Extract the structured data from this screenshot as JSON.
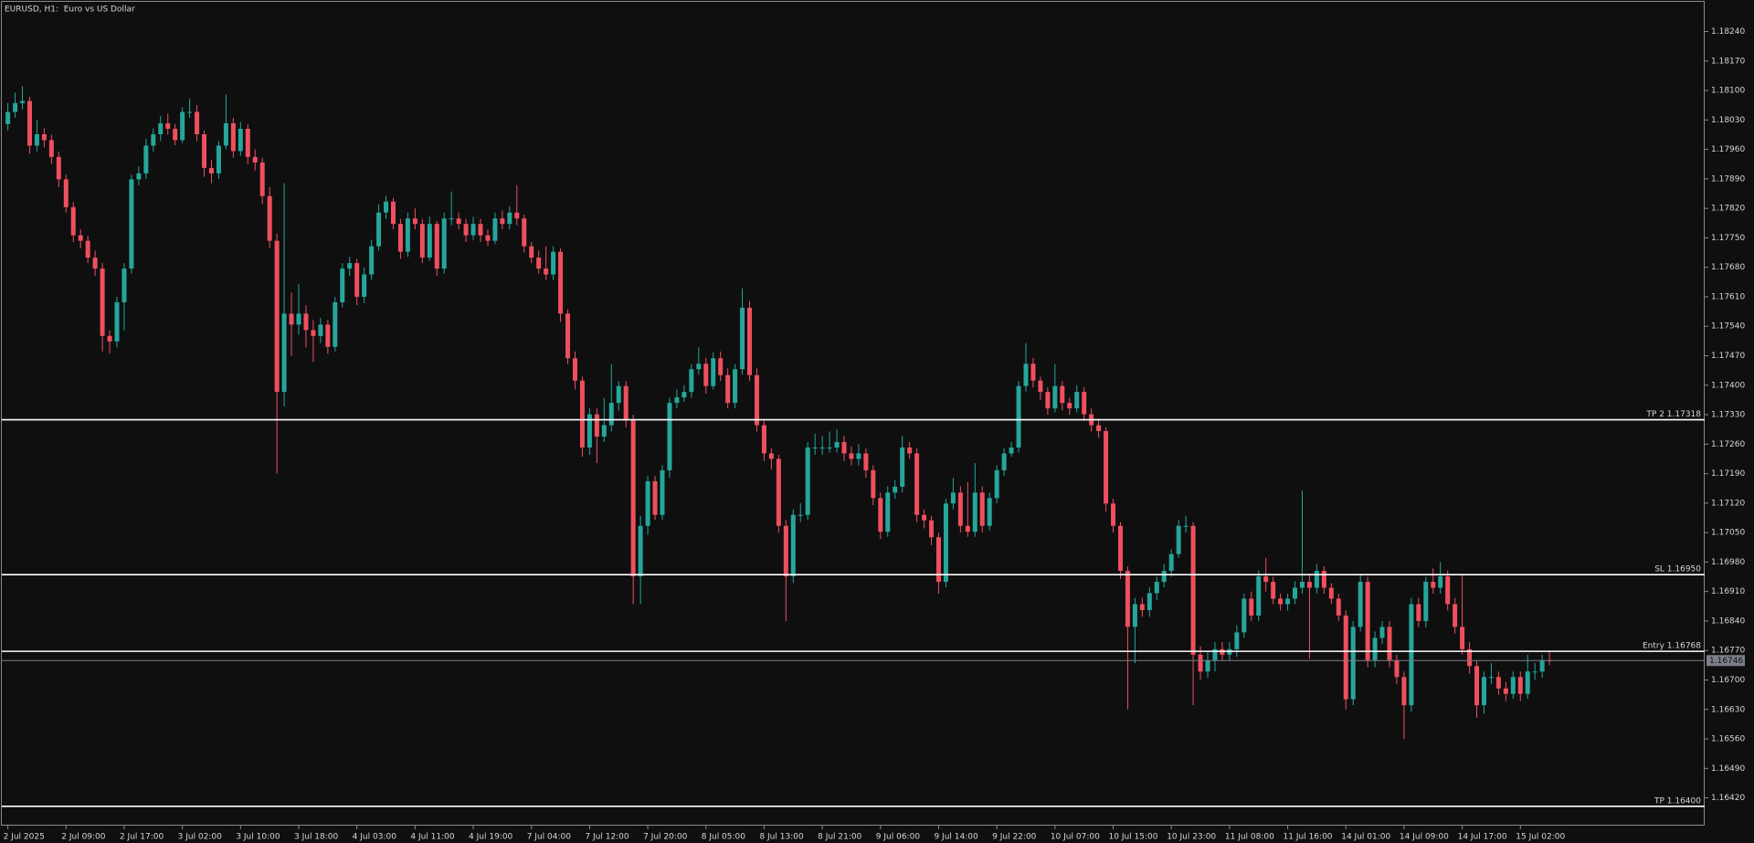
{
  "chart_data": {
    "type": "candlestick",
    "title": "EURUSD, H1:  Euro vs US Dollar",
    "up_color": "#26a69a",
    "down_color": "#ef4f5e",
    "level_color": "#ffffff",
    "last_price_color": "#7a7f88",
    "categories": [
      "2 Jul 2025",
      null,
      null,
      null,
      null,
      null,
      null,
      null,
      "2 Jul 09:00",
      null,
      null,
      null,
      null,
      null,
      null,
      null,
      "2 Jul 17:00",
      null,
      null,
      null,
      null,
      null,
      null,
      null,
      "3 Jul 02:00",
      null,
      null,
      null,
      null,
      null,
      null,
      null,
      "3 Jul 10:00",
      null,
      null,
      null,
      null,
      null,
      null,
      null,
      "3 Jul 18:00",
      null,
      null,
      null,
      null,
      null,
      null,
      null,
      "4 Jul 03:00",
      null,
      null,
      null,
      null,
      null,
      null,
      null,
      "4 Jul 11:00",
      null,
      null,
      null,
      null,
      null,
      null,
      null,
      "4 Jul 19:00",
      null,
      null,
      null,
      null,
      null,
      null,
      null,
      "7 Jul 04:00",
      null,
      null,
      null,
      null,
      null,
      null,
      null,
      "7 Jul 12:00",
      null,
      null,
      null,
      null,
      null,
      null,
      null,
      "7 Jul 20:00",
      null,
      null,
      null,
      null,
      null,
      null,
      null,
      "8 Jul 05:00",
      null,
      null,
      null,
      null,
      null,
      null,
      null,
      "8 Jul 13:00",
      null,
      null,
      null,
      null,
      null,
      null,
      null,
      "8 Jul 21:00",
      null,
      null,
      null,
      null,
      null,
      null,
      null,
      "9 Jul 06:00",
      null,
      null,
      null,
      null,
      null,
      null,
      null,
      "9 Jul 14:00",
      null,
      null,
      null,
      null,
      null,
      null,
      null,
      "9 Jul 22:00",
      null,
      null,
      null,
      null,
      null,
      null,
      null,
      "10 Jul 07:00",
      null,
      null,
      null,
      null,
      null,
      null,
      null,
      "10 Jul 15:00",
      null,
      null,
      null,
      null,
      null,
      null,
      null,
      "10 Jul 23:00",
      null,
      null,
      null,
      null,
      null,
      null,
      null,
      "11 Jul 08:00",
      null,
      null,
      null,
      null,
      null,
      null,
      null,
      "11 Jul 16:00",
      null,
      null,
      null,
      null,
      null,
      null,
      null,
      "14 Jul 01:00",
      null,
      null,
      null,
      null,
      null,
      null,
      null,
      "14 Jul 09:00",
      null,
      null,
      null,
      null,
      null,
      null,
      null,
      "14 Jul 17:00",
      null,
      null,
      null,
      null,
      null,
      null,
      null,
      "15 Jul 02:00",
      null,
      null,
      null,
      null
    ],
    "open": [
      1.1802,
      1.18049,
      1.1807,
      1.18075,
      1.17969,
      1.17996,
      1.17982,
      1.17942,
      1.17889,
      1.17823,
      1.17756,
      1.17743,
      1.17703,
      1.17677,
      1.17517,
      1.17504,
      1.17597,
      1.17677,
      1.17889,
      1.17903,
      1.17969,
      1.17996,
      1.18022,
      1.18009,
      1.17982,
      1.18049,
      1.18049,
      1.17996,
      1.17916,
      1.17903,
      1.17969,
      1.18022,
      1.17956,
      1.18009,
      1.17942,
      1.17929,
      1.17849,
      1.17743,
      1.17384,
      1.1757,
      1.17544,
      1.1757,
      1.17531,
      1.17517,
      1.17544,
      1.17491,
      1.17597,
      1.17677,
      1.1769,
      1.1761,
      1.17663,
      1.1773,
      1.1781,
      1.17836,
      1.17783,
      1.17717,
      1.17796,
      1.17783,
      1.17703,
      1.17783,
      1.17677,
      1.17796,
      1.17796,
      1.17783,
      1.17756,
      1.17783,
      1.17756,
      1.17743,
      1.17796,
      1.17783,
      1.1781,
      1.17796,
      1.1773,
      1.17703,
      1.17677,
      1.17663,
      1.17717,
      1.1757,
      1.17464,
      1.17411,
      1.17252,
      1.17331,
      1.17278,
      1.17305,
      1.17358,
      1.17398,
      1.17318,
      1.16946,
      1.17066,
      1.17172,
      1.17092,
      1.17198,
      1.17358,
      1.17371,
      1.17384,
      1.17438,
      1.17451,
      1.17398,
      1.17464,
      1.17424,
      1.17358,
      1.17438,
      1.17584,
      1.17424,
      1.17305,
      1.17238,
      1.17225,
      1.17066,
      1.16946,
      1.17092,
      1.17092,
      1.17252,
      1.17252,
      1.17252,
      1.17252,
      1.17265,
      1.17238,
      1.17225,
      1.17238,
      1.17198,
      1.17132,
      1.17052,
      1.17145,
      1.17159,
      1.17252,
      1.17238,
      1.17092,
      1.17079,
      1.17039,
      1.16933,
      1.17119,
      1.17145,
      1.17066,
      1.17052,
      1.17145,
      1.17066,
      1.17132,
      1.17198,
      1.17238,
      1.17252,
      1.17398,
      1.17451,
      1.17411,
      1.17384,
      1.17345,
      1.17398,
      1.17358,
      1.17345,
      1.17384,
      1.17331,
      1.17305,
      1.17291,
      1.17119,
      1.17066,
      1.16959,
      1.16826,
      1.1688,
      1.16866,
      1.16906,
      1.16933,
      1.16959,
      1.16999,
      1.17066,
      1.17066,
      1.1676,
      1.1672,
      1.16747,
      1.16773,
      1.1676,
      1.16773,
      1.16813,
      1.16893,
      1.16853,
      1.16946,
      1.16933,
      1.16893,
      1.1688,
      1.16893,
      1.16919,
      1.16933,
      1.16919,
      1.16959,
      1.16919,
      1.16893,
      1.16853,
      1.16654,
      1.16826,
      1.16933,
      1.16747,
      1.168,
      1.16826,
      1.16747,
      1.16707,
      1.1664,
      1.1688,
      1.1684,
      1.16933,
      1.16919,
      1.16946,
      1.1688,
      1.16826,
      1.16773,
      1.16733,
      1.1664,
      1.16707,
      1.16707,
      1.1668,
      1.16667,
      1.16707,
      1.16667,
      1.1672,
      1.1672,
      1.16747
    ],
    "high": [
      1.1807,
      1.18095,
      1.1811,
      1.18085,
      1.1803,
      1.1801,
      1.17995,
      1.17955,
      1.179,
      1.17835,
      1.1777,
      1.17755,
      1.1772,
      1.1769,
      1.1753,
      1.1761,
      1.1769,
      1.179,
      1.1792,
      1.17985,
      1.1801,
      1.1804,
      1.18045,
      1.1802,
      1.1806,
      1.1808,
      1.18065,
      1.18005,
      1.17935,
      1.1798,
      1.1809,
      1.18035,
      1.18025,
      1.1802,
      1.1796,
      1.1794,
      1.1787,
      1.1776,
      1.1788,
      1.1762,
      1.1764,
      1.1759,
      1.17555,
      1.1756,
      1.17555,
      1.1761,
      1.1769,
      1.17705,
      1.177,
      1.1768,
      1.17745,
      1.1783,
      1.1785,
      1.17845,
      1.17795,
      1.1781,
      1.1782,
      1.17795,
      1.178,
      1.1779,
      1.1781,
      1.1786,
      1.1781,
      1.17795,
      1.178,
      1.17795,
      1.1777,
      1.1781,
      1.17815,
      1.17825,
      1.17875,
      1.17805,
      1.1774,
      1.1772,
      1.1773,
      1.1773,
      1.17725,
      1.1758,
      1.1748,
      1.1742,
      1.17345,
      1.17345,
      1.1737,
      1.1745,
      1.1741,
      1.1741,
      1.1733,
      1.1709,
      1.17185,
      1.17185,
      1.1721,
      1.1737,
      1.1739,
      1.174,
      1.1745,
      1.1749,
      1.17465,
      1.17478,
      1.1748,
      1.1744,
      1.1745,
      1.1763,
      1.176,
      1.1744,
      1.17315,
      1.1725,
      1.17235,
      1.1708,
      1.17105,
      1.1712,
      1.17265,
      1.17285,
      1.1728,
      1.1729,
      1.17295,
      1.1728,
      1.17255,
      1.1726,
      1.1725,
      1.1721,
      1.17145,
      1.1716,
      1.17175,
      1.1728,
      1.17265,
      1.1725,
      1.17105,
      1.1709,
      1.1705,
      1.1713,
      1.1718,
      1.1716,
      1.1717,
      1.17215,
      1.1716,
      1.17145,
      1.1721,
      1.1725,
      1.17265,
      1.1741,
      1.175,
      1.17465,
      1.1742,
      1.17395,
      1.1745,
      1.1741,
      1.1737,
      1.174,
      1.17395,
      1.17345,
      1.1732,
      1.173,
      1.1713,
      1.17075,
      1.1697,
      1.16895,
      1.16895,
      1.1692,
      1.16945,
      1.16975,
      1.1701,
      1.1708,
      1.1709,
      1.17075,
      1.1678,
      1.1677,
      1.1679,
      1.1679,
      1.1679,
      1.1683,
      1.16905,
      1.1691,
      1.1696,
      1.1699,
      1.16945,
      1.16905,
      1.16905,
      1.16935,
      1.1715,
      1.1695,
      1.16975,
      1.1697,
      1.1693,
      1.16905,
      1.16865,
      1.1684,
      1.1695,
      1.16945,
      1.16815,
      1.1684,
      1.1684,
      1.1676,
      1.1672,
      1.16895,
      1.16895,
      1.16945,
      1.16965,
      1.1698,
      1.1696,
      1.16895,
      1.1695,
      1.1679,
      1.16745,
      1.1672,
      1.1674,
      1.1672,
      1.16695,
      1.1672,
      1.1672,
      1.1676,
      1.1674,
      1.1676,
      1.1677
    ],
    "low": [
      1.18005,
      1.18035,
      1.18055,
      1.1795,
      1.17955,
      1.17965,
      1.17925,
      1.1787,
      1.1781,
      1.1774,
      1.17725,
      1.1769,
      1.1766,
      1.1748,
      1.17475,
      1.1749,
      1.1753,
      1.17665,
      1.17875,
      1.1789,
      1.17955,
      1.1798,
      1.17995,
      1.1797,
      1.17975,
      1.18035,
      1.1798,
      1.17895,
      1.1788,
      1.1789,
      1.1796,
      1.1794,
      1.17945,
      1.17925,
      1.1791,
      1.1783,
      1.17725,
      1.1719,
      1.1735,
      1.1747,
      1.1752,
      1.1749,
      1.17455,
      1.175,
      1.17475,
      1.1748,
      1.17585,
      1.1766,
      1.1759,
      1.17595,
      1.1765,
      1.1772,
      1.17795,
      1.1777,
      1.177,
      1.17705,
      1.1777,
      1.1769,
      1.17695,
      1.1766,
      1.17665,
      1.1778,
      1.1777,
      1.1774,
      1.17745,
      1.1774,
      1.1773,
      1.17735,
      1.1777,
      1.1777,
      1.1778,
      1.17715,
      1.1769,
      1.17665,
      1.1765,
      1.1765,
      1.1755,
      1.1745,
      1.1739,
      1.1723,
      1.17235,
      1.17215,
      1.17265,
      1.1729,
      1.1734,
      1.173,
      1.1688,
      1.1688,
      1.17045,
      1.1708,
      1.1708,
      1.1718,
      1.17345,
      1.1736,
      1.1737,
      1.17425,
      1.1738,
      1.1739,
      1.1741,
      1.17345,
      1.17345,
      1.17425,
      1.1741,
      1.1729,
      1.1722,
      1.172,
      1.1705,
      1.1684,
      1.1693,
      1.17075,
      1.1708,
      1.17235,
      1.17235,
      1.1724,
      1.1724,
      1.1722,
      1.1721,
      1.1721,
      1.1718,
      1.17115,
      1.17035,
      1.1704,
      1.1713,
      1.17145,
      1.17225,
      1.17075,
      1.1706,
      1.1702,
      1.16905,
      1.1692,
      1.17105,
      1.1705,
      1.1704,
      1.1704,
      1.1705,
      1.17055,
      1.1712,
      1.17185,
      1.1723,
      1.1724,
      1.17385,
      1.17395,
      1.17365,
      1.1733,
      1.17335,
      1.1734,
      1.1733,
      1.17335,
      1.17315,
      1.1729,
      1.17275,
      1.171,
      1.1705,
      1.1694,
      1.1663,
      1.1674,
      1.1685,
      1.1685,
      1.1689,
      1.1692,
      1.16945,
      1.1699,
      1.1705,
      1.1664,
      1.167,
      1.16705,
      1.1672,
      1.16745,
      1.16745,
      1.16755,
      1.168,
      1.1684,
      1.1684,
      1.1691,
      1.1688,
      1.16865,
      1.16865,
      1.1688,
      1.16905,
      1.1675,
      1.16905,
      1.16905,
      1.1688,
      1.1684,
      1.1663,
      1.1664,
      1.16815,
      1.1673,
      1.1673,
      1.16785,
      1.1673,
      1.1669,
      1.1656,
      1.16625,
      1.16825,
      1.16825,
      1.16905,
      1.16905,
      1.16865,
      1.1681,
      1.1676,
      1.16715,
      1.1661,
      1.1662,
      1.1669,
      1.16665,
      1.1665,
      1.16655,
      1.1665,
      1.16655,
      1.167,
      1.16705,
      1.16735
    ],
    "close": [
      1.18049,
      1.1807,
      1.18075,
      1.17969,
      1.17996,
      1.17982,
      1.17942,
      1.17889,
      1.17823,
      1.17756,
      1.17743,
      1.17703,
      1.17677,
      1.17517,
      1.17504,
      1.17597,
      1.17677,
      1.17889,
      1.17903,
      1.17969,
      1.17996,
      1.18022,
      1.18009,
      1.17982,
      1.18049,
      1.18049,
      1.17996,
      1.17916,
      1.17903,
      1.17969,
      1.18022,
      1.17956,
      1.18009,
      1.17942,
      1.17929,
      1.17849,
      1.17743,
      1.17384,
      1.1757,
      1.17544,
      1.1757,
      1.17531,
      1.17517,
      1.17544,
      1.17491,
      1.17597,
      1.17677,
      1.1769,
      1.1761,
      1.17663,
      1.1773,
      1.1781,
      1.17836,
      1.17783,
      1.17717,
      1.17796,
      1.17783,
      1.17703,
      1.17783,
      1.17677,
      1.17796,
      1.17796,
      1.17783,
      1.17756,
      1.17783,
      1.17756,
      1.17743,
      1.17796,
      1.17783,
      1.1781,
      1.17796,
      1.1773,
      1.17703,
      1.17677,
      1.17663,
      1.17717,
      1.1757,
      1.17464,
      1.17411,
      1.17252,
      1.17331,
      1.17278,
      1.17305,
      1.17358,
      1.17398,
      1.17318,
      1.16946,
      1.17066,
      1.17172,
      1.17092,
      1.17198,
      1.17358,
      1.17371,
      1.17384,
      1.17438,
      1.17451,
      1.17398,
      1.17464,
      1.17424,
      1.17358,
      1.17438,
      1.17584,
      1.17424,
      1.17305,
      1.17238,
      1.17225,
      1.17066,
      1.16946,
      1.17092,
      1.17092,
      1.17252,
      1.17252,
      1.17252,
      1.17252,
      1.17265,
      1.17238,
      1.17225,
      1.17238,
      1.17198,
      1.17132,
      1.17052,
      1.17145,
      1.17159,
      1.17252,
      1.17238,
      1.17092,
      1.17079,
      1.17039,
      1.16933,
      1.17119,
      1.17145,
      1.17066,
      1.17052,
      1.17145,
      1.17066,
      1.17132,
      1.17198,
      1.17238,
      1.17252,
      1.17398,
      1.17451,
      1.17411,
      1.17384,
      1.17345,
      1.17398,
      1.17358,
      1.17345,
      1.17384,
      1.17331,
      1.17305,
      1.17291,
      1.17119,
      1.17066,
      1.16959,
      1.16826,
      1.1688,
      1.16866,
      1.16906,
      1.16933,
      1.16959,
      1.16999,
      1.17066,
      1.17066,
      1.1676,
      1.1672,
      1.16747,
      1.16773,
      1.1676,
      1.16773,
      1.16813,
      1.16893,
      1.16853,
      1.16946,
      1.16933,
      1.16893,
      1.1688,
      1.16893,
      1.16919,
      1.16933,
      1.16919,
      1.16959,
      1.16919,
      1.16893,
      1.16853,
      1.16654,
      1.16826,
      1.16933,
      1.16747,
      1.168,
      1.16826,
      1.16747,
      1.16707,
      1.1664,
      1.1688,
      1.1684,
      1.16933,
      1.16919,
      1.16946,
      1.1688,
      1.16826,
      1.16773,
      1.16733,
      1.1664,
      1.16707,
      1.16707,
      1.1668,
      1.16667,
      1.16707,
      1.16667,
      1.1672,
      1.1672,
      1.16747,
      1.16746
    ],
    "ylim": [
      1.16354,
      1.18304
    ],
    "yticks": [
      {
        "value": 1.1642,
        "label": "1.16420"
      },
      {
        "value": 1.1649,
        "label": "1.16490"
      },
      {
        "value": 1.1656,
        "label": "1.16560"
      },
      {
        "value": 1.1663,
        "label": "1.16630"
      },
      {
        "value": 1.167,
        "label": "1.16700"
      },
      {
        "value": 1.1677,
        "label": "1.16770"
      },
      {
        "value": 1.1684,
        "label": "1.16840"
      },
      {
        "value": 1.1691,
        "label": "1.16910"
      },
      {
        "value": 1.1698,
        "label": "1.16980"
      },
      {
        "value": 1.1705,
        "label": "1.17050"
      },
      {
        "value": 1.1712,
        "label": "1.17120"
      },
      {
        "value": 1.1719,
        "label": "1.17190"
      },
      {
        "value": 1.1726,
        "label": "1.17260"
      },
      {
        "value": 1.1733,
        "label": "1.17330"
      },
      {
        "value": 1.174,
        "label": "1.17400"
      },
      {
        "value": 1.1747,
        "label": "1.17470"
      },
      {
        "value": 1.1754,
        "label": "1.17540"
      },
      {
        "value": 1.1761,
        "label": "1.17610"
      },
      {
        "value": 1.1768,
        "label": "1.17680"
      },
      {
        "value": 1.1775,
        "label": "1.17750"
      },
      {
        "value": 1.1782,
        "label": "1.17820"
      },
      {
        "value": 1.1789,
        "label": "1.17890"
      },
      {
        "value": 1.1796,
        "label": "1.17960"
      },
      {
        "value": 1.1803,
        "label": "1.18030"
      },
      {
        "value": 1.181,
        "label": "1.18100"
      },
      {
        "value": 1.1817,
        "label": "1.18170"
      },
      {
        "value": 1.1824,
        "label": "1.18240"
      }
    ],
    "levels": [
      {
        "value": 1.17318,
        "label": "TP 2 1.17318"
      },
      {
        "value": 1.1695,
        "label": "SL 1.16950"
      },
      {
        "value": 1.16768,
        "label": "Entry 1.16768"
      },
      {
        "value": 1.164,
        "label": "TP 1.16400"
      }
    ],
    "last_price": 1.16746
  }
}
